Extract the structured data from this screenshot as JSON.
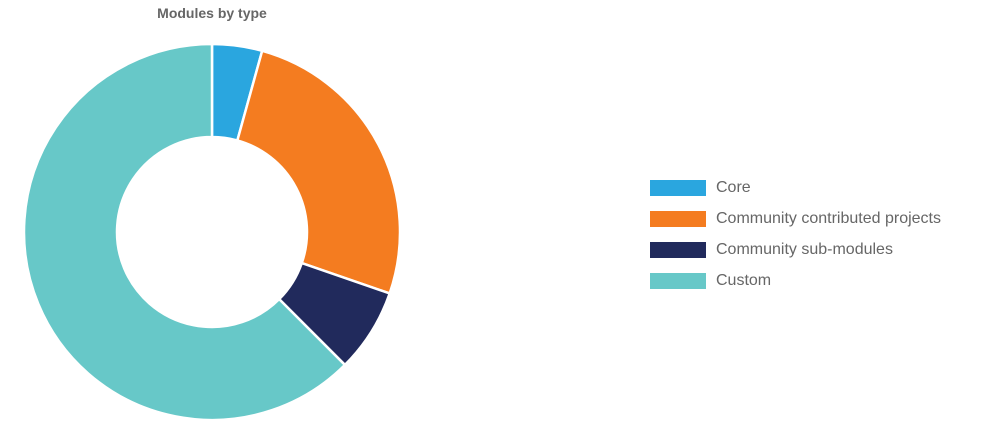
{
  "chart_data": {
    "type": "pie",
    "title": "Modules by type",
    "categories": [
      "Core",
      "Community contributed projects",
      "Community sub-modules",
      "Custom"
    ],
    "values": [
      4.3,
      26.0,
      7.2,
      62.5
    ],
    "colors": [
      "#2aa6df",
      "#f47c20",
      "#212a5c",
      "#67c8c8"
    ],
    "legend_position": "right"
  }
}
